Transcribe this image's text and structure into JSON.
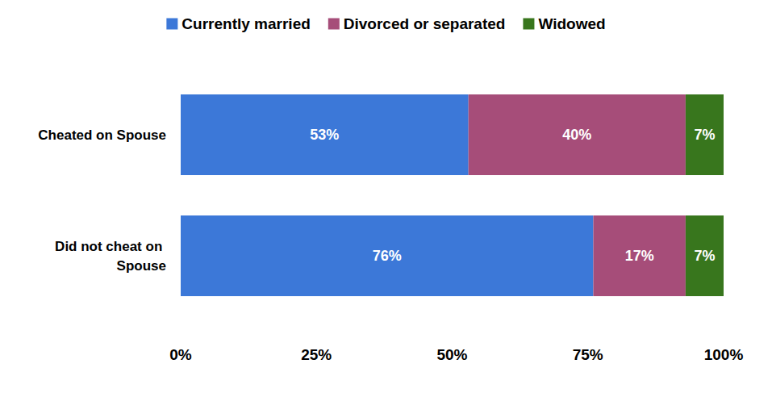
{
  "chart_data": {
    "type": "bar",
    "orientation": "horizontal",
    "stacked": true,
    "data_labels": true,
    "grid": false,
    "legend": "top",
    "categories": [
      "Cheated on Spouse",
      "Did not cheat on Spouse"
    ],
    "series": [
      {
        "name": "Currently married",
        "color": "#3c78d8",
        "values": [
          53,
          76
        ],
        "value_labels": [
          "53%",
          "76%"
        ]
      },
      {
        "name": "Divorced or separated",
        "color": "#a64d79",
        "values": [
          40,
          17
        ],
        "value_labels": [
          "40%",
          "17%"
        ]
      },
      {
        "name": "Widowed",
        "color": "#38761d",
        "values": [
          7,
          7
        ],
        "value_labels": [
          "7%",
          "7%"
        ]
      }
    ],
    "xlim": [
      0,
      100
    ],
    "xticks": [
      {
        "value": 0,
        "label": "0%"
      },
      {
        "value": 25,
        "label": "25%"
      },
      {
        "value": 50,
        "label": "50%"
      },
      {
        "value": 75,
        "label": "75%"
      },
      {
        "value": 100,
        "label": "100%"
      }
    ]
  }
}
